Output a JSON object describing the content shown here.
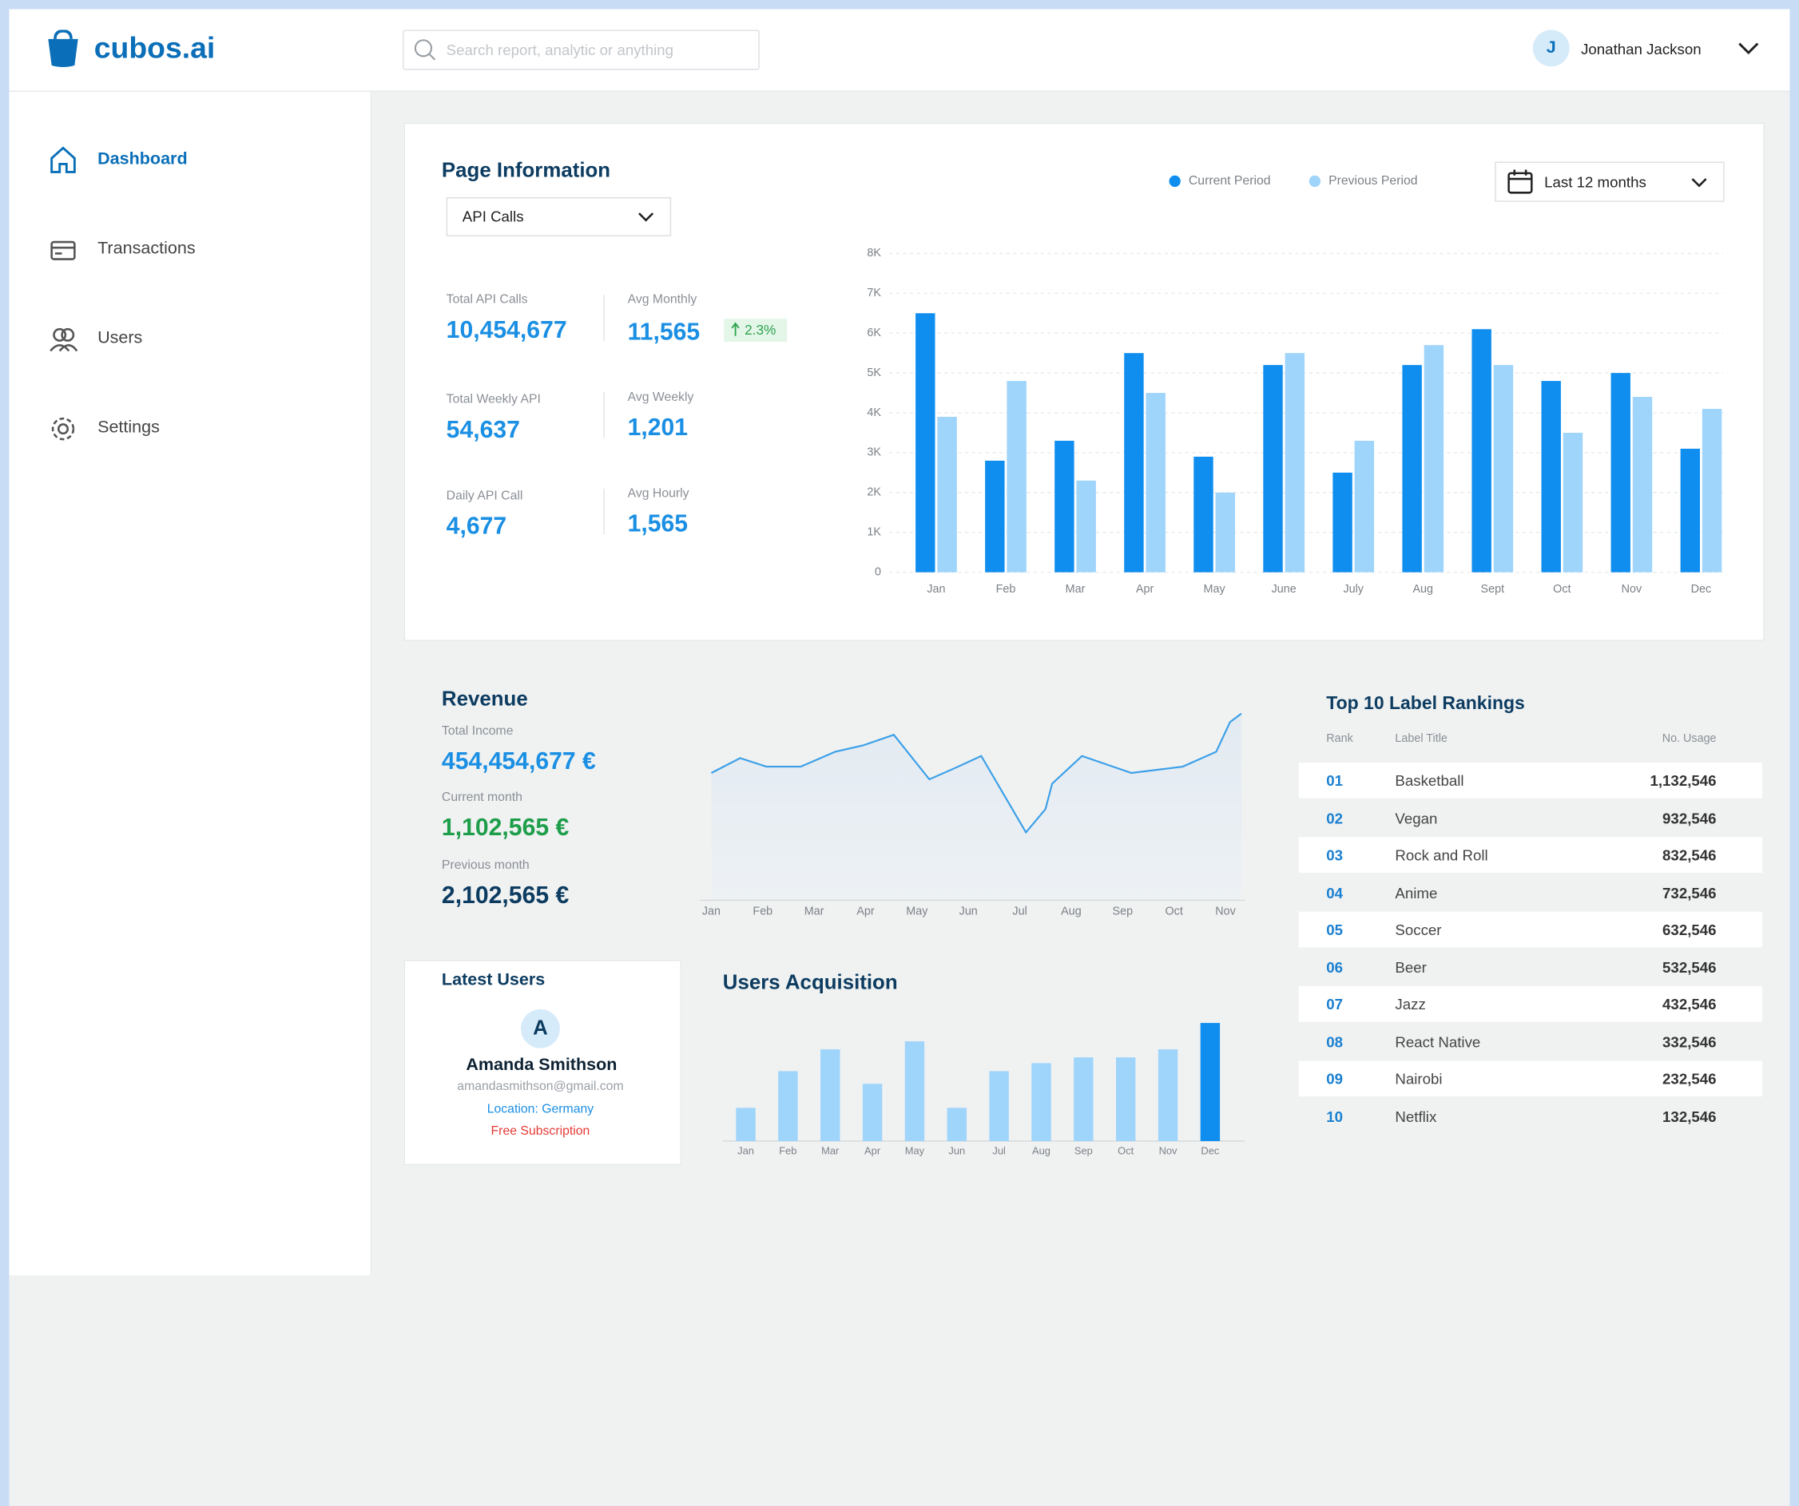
{
  "header": {
    "logo": "cubos.ai",
    "search_placeholder": "Search report, analytic or anything",
    "user_initial": "J",
    "user_name": "Jonathan Jackson"
  },
  "sidebar": {
    "items": [
      "Dashboard",
      "Transactions",
      "Users",
      "Settings"
    ]
  },
  "page_information": {
    "title": "Page Information",
    "select": "API Calls",
    "date_range": "Last 12 months",
    "stats": [
      {
        "label": "Total API Calls",
        "value": "10,454,677"
      },
      {
        "label": "Avg Monthly",
        "value": "11,565",
        "change": "2.3%"
      },
      {
        "label": "Total Weekly API",
        "value": "54,637"
      },
      {
        "label": "Avg Weekly",
        "value": "1,201"
      },
      {
        "label": "Daily API Call",
        "value": "4,677"
      },
      {
        "label": "Avg Hourly",
        "value": "1,565"
      }
    ],
    "chart": {
      "type": "bar",
      "categories": [
        "Jan",
        "Feb",
        "Mar",
        "Apr",
        "May",
        "June",
        "July",
        "Aug",
        "Sept",
        "Oct",
        "Nov",
        "Dec"
      ],
      "series": [
        {
          "name": "Current Period",
          "color": "#0f8ef0",
          "values": [
            6500,
            2800,
            3300,
            5500,
            2900,
            5200,
            2500,
            5200,
            6100,
            4800,
            5000,
            3100
          ]
        },
        {
          "name": "Previous Period",
          "color": "#9fd4fb",
          "values": [
            3900,
            4800,
            2300,
            4500,
            2000,
            5500,
            3300,
            5700,
            5200,
            3500,
            4400,
            4100
          ]
        }
      ],
      "ylim": [
        0,
        8000
      ],
      "yticks": [
        0,
        {
          "value": 1000,
          "label": "1K"
        },
        {
          "value": 2000,
          "label": "2K"
        },
        {
          "value": 3000,
          "label": "3K"
        },
        {
          "value": 4000,
          "label": "4K"
        },
        {
          "value": 5000,
          "label": "5K"
        },
        {
          "value": 6000,
          "label": "6K"
        },
        {
          "value": 7000,
          "label": "7K"
        },
        {
          "value": 8000,
          "label": "8K"
        }
      ],
      "grid": true
    }
  },
  "revenue": {
    "title": "Revenue",
    "stats": [
      {
        "label": "Total Income",
        "value": "454,454,677 €"
      },
      {
        "label": "Current month",
        "value": "1,102,565 €"
      },
      {
        "label": "Previous month",
        "value": "2,102,565 €"
      }
    ],
    "chart": {
      "type": "line",
      "x": [
        0,
        0.56,
        1.07,
        1.74,
        2.41,
        2.95,
        3.55,
        4.24,
        4.71,
        5.25,
        6.12,
        6.5,
        6.63,
        7.21,
        8.17,
        9.17,
        9.82,
        10.09,
        10.31
      ],
      "values": [
        60,
        67,
        63,
        63,
        70,
        73,
        78,
        57,
        62,
        68,
        32,
        43,
        55,
        68,
        60,
        63,
        70,
        84,
        88
      ],
      "color": "#3a9fe8",
      "xlim": [
        0,
        10.31
      ],
      "ylim": [
        0,
        100
      ],
      "xticks": [
        {
          "value": 0,
          "label": "Jan"
        },
        {
          "value": 1,
          "label": "Feb"
        },
        {
          "value": 2,
          "label": "Mar"
        },
        {
          "value": 3,
          "label": "Apr"
        },
        {
          "value": 4,
          "label": "May"
        },
        {
          "value": 5,
          "label": "Jun"
        },
        {
          "value": 6,
          "label": "Jul"
        },
        {
          "value": 7,
          "label": "Aug"
        },
        {
          "value": 8,
          "label": "Sep"
        },
        {
          "value": 9,
          "label": "Oct"
        },
        {
          "value": 10,
          "label": "Nov"
        }
      ]
    }
  },
  "top_rankings": {
    "title": "Top 10 Label Rankings",
    "columns": [
      "Rank",
      "Label Title",
      "No. Usage"
    ],
    "rows": [
      [
        "01",
        "Basketball",
        "1,132,546"
      ],
      [
        "02",
        "Vegan",
        "932,546"
      ],
      [
        "03",
        "Rock and Roll",
        "832,546"
      ],
      [
        "04",
        "Anime",
        "732,546"
      ],
      [
        "05",
        "Soccer",
        "632,546"
      ],
      [
        "06",
        "Beer",
        "532,546"
      ],
      [
        "07",
        "Jazz",
        "432,546"
      ],
      [
        "08",
        "React Native",
        "332,546"
      ],
      [
        "09",
        "Nairobi",
        "232,546"
      ],
      [
        "10",
        "Netflix",
        "132,546"
      ]
    ]
  },
  "latest_users": {
    "title": "Latest Users",
    "initial": "A",
    "name": "Amanda Smithson",
    "email": "amandasmithson@gmail.com",
    "location": "Location: Germany",
    "subscription": "Free Subscription"
  },
  "users_acquisition": {
    "title": "Users Acquisition",
    "chart": {
      "type": "bar",
      "categories": [
        "Jan",
        "Feb",
        "Mar",
        "Apr",
        "May",
        "Jun",
        "Jul",
        "Aug",
        "Sep",
        "Oct",
        "Nov",
        "Dec"
      ],
      "values": [
        29,
        61,
        80,
        50,
        87,
        29,
        61,
        68,
        73,
        73,
        80,
        103
      ],
      "colors": [
        "#9fd4fb",
        "#9fd4fb",
        "#9fd4fb",
        "#9fd4fb",
        "#9fd4fb",
        "#9fd4fb",
        "#9fd4fb",
        "#9fd4fb",
        "#9fd4fb",
        "#9fd4fb",
        "#9fd4fb",
        "#0f8ef0"
      ],
      "ylim": [
        0,
        110
      ]
    }
  }
}
